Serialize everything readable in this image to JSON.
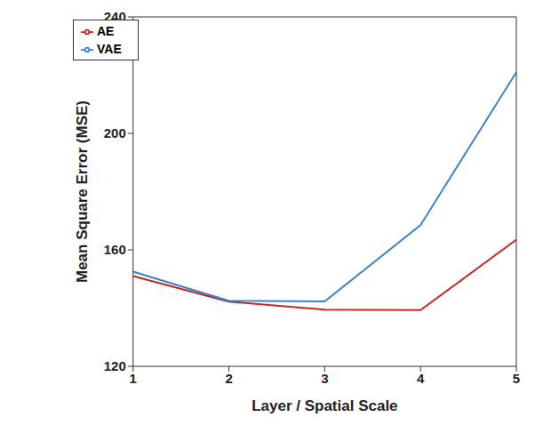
{
  "chart_data": {
    "type": "line",
    "x_label": "Layer / Spatial Scale",
    "y_label": "Mean Square Error (MSE)",
    "x": [
      1,
      2,
      3,
      4,
      5
    ],
    "series": [
      {
        "name": "AE",
        "color": "#c8281e",
        "values": [
          151,
          142.2,
          139.5,
          139.3,
          163.5
        ]
      },
      {
        "name": "VAE",
        "color": "#3a83c8",
        "values": [
          152.5,
          142.5,
          142.3,
          168.5,
          221
        ]
      }
    ],
    "xlim": [
      1,
      5
    ],
    "xticks": [
      1,
      2,
      3,
      4,
      5
    ],
    "ylim": [
      120,
      240
    ],
    "yticks": [
      120,
      160,
      200,
      240
    ],
    "grid": false,
    "legend": "upper left"
  }
}
